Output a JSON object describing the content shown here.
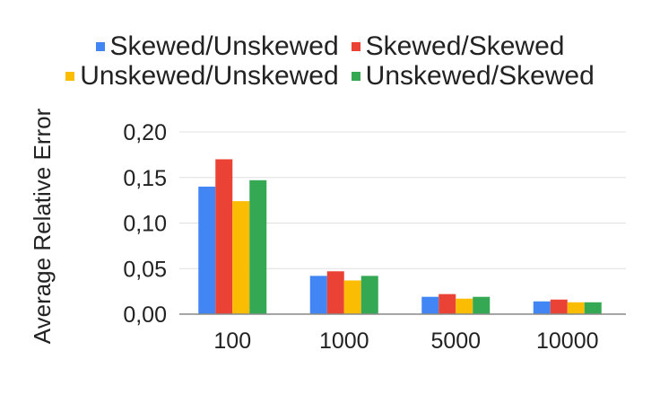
{
  "chart_data": {
    "type": "bar",
    "title": "",
    "xlabel": "",
    "ylabel": "Average Relative Error",
    "categories": [
      "100",
      "1000",
      "5000",
      "10000"
    ],
    "ylim": [
      0,
      0.2
    ],
    "y_ticks": [
      "0,00",
      "0,05",
      "0,10",
      "0,15",
      "0,20"
    ],
    "grid": true,
    "legend_position": "top",
    "series": [
      {
        "name": "Skewed/Unskewed",
        "color": "#4285f4",
        "values": [
          0.14,
          0.042,
          0.019,
          0.014
        ]
      },
      {
        "name": "Skewed/Skewed",
        "color": "#ea4335",
        "values": [
          0.17,
          0.047,
          0.022,
          0.016
        ]
      },
      {
        "name": "Unskewed/Unskewed",
        "color": "#fbbc04",
        "values": [
          0.124,
          0.037,
          0.017,
          0.013
        ]
      },
      {
        "name": "Unskewed/Skewed",
        "color": "#34a853",
        "values": [
          0.147,
          0.042,
          0.019,
          0.013
        ]
      }
    ]
  }
}
